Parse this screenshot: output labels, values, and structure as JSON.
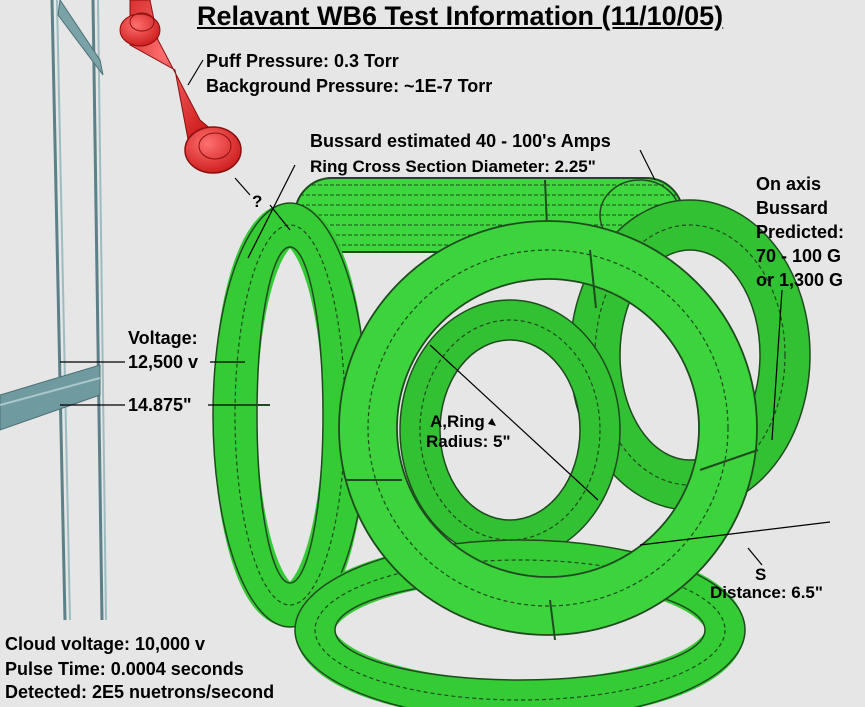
{
  "title": "Relavant WB6 Test Information (11/10/05)",
  "puff_pressure": "Puff Pressure: 0.3 Torr",
  "background_pressure": "Background Pressure: ~1E-7 Torr",
  "bussard_current": "Bussard estimated 40 - 100's Amps",
  "ring_cross_section": "Ring Cross Section Diameter: 2.25\"",
  "question_mark": "?",
  "on_axis": {
    "line1": "On axis",
    "line2": "Bussard",
    "line3": "Predicted:",
    "line4": "70 - 100 G",
    "line5": "or 1,300 G"
  },
  "voltage": {
    "label": "Voltage:",
    "value": "12,500 v"
  },
  "spacing": "14.875\"",
  "ring_radius": {
    "line1": "A,Ring",
    "line2": "Radius: 5\""
  },
  "distance": {
    "symbol": "S",
    "value": "Distance: 6.5\""
  },
  "bottom_info": {
    "cloud_voltage": "Cloud voltage: 10,000 v",
    "pulse_time": "Pulse Time: 0.0004 seconds",
    "detected": "Detected: 2E5 nuetrons/second"
  },
  "colors": {
    "background": "#e6e6e6",
    "coil_green": "#22cc22",
    "coil_outline": "#0a3a0a",
    "puff_tube_red": "#e52b2b",
    "frame_blue_gray": "#6f9aa0"
  }
}
